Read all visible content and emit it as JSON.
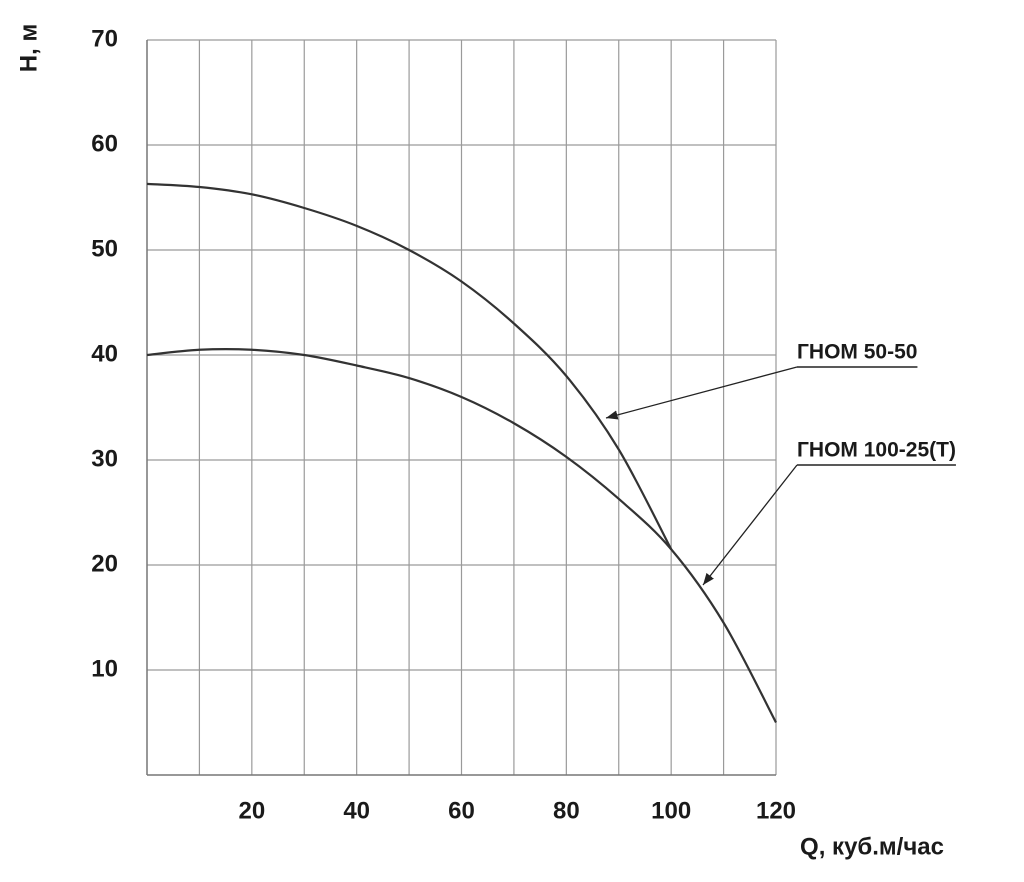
{
  "chart_data": {
    "type": "line",
    "x_label": "Q, куб.м/час",
    "y_label": "Н, м",
    "xlim": [
      0,
      120
    ],
    "ylim": [
      0,
      70
    ],
    "xticks": [
      20,
      40,
      60,
      80,
      100,
      120
    ],
    "xminorticks": [
      10,
      30,
      50,
      70,
      90,
      110
    ],
    "yticks": [
      10,
      20,
      30,
      40,
      50,
      60,
      70
    ],
    "grid": true,
    "series": [
      {
        "name": "ГНОМ 50-50",
        "color": "#333333",
        "x": [
          0,
          10,
          20,
          30,
          40,
          50,
          60,
          70,
          80,
          90,
          100
        ],
        "values": [
          56.3,
          56,
          55.3,
          54,
          52.3,
          50,
          47,
          43,
          38,
          31,
          21.5
        ]
      },
      {
        "name": "ГНОМ 100-25(Т)",
        "color": "#333333",
        "x": [
          0,
          10,
          20,
          30,
          40,
          50,
          60,
          70,
          80,
          90,
          100,
          110,
          120
        ],
        "values": [
          40,
          40.5,
          40.5,
          40,
          39,
          37.8,
          36,
          33.5,
          30.3,
          26.3,
          21.5,
          14.5,
          5
        ]
      }
    ]
  }
}
